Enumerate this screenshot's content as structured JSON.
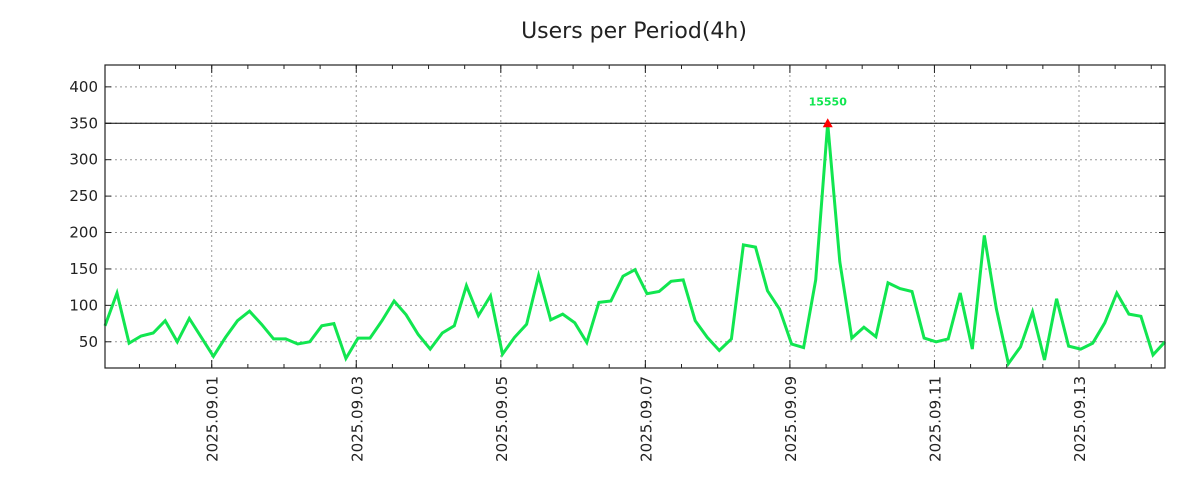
{
  "chart_data": {
    "type": "line",
    "title": "Users per Period(4h)",
    "xlabel": "",
    "ylabel": "",
    "x_unit": "period index (4h each)",
    "ylim": [
      14,
      430
    ],
    "xlim": [
      0,
      88
    ],
    "grid": true,
    "yticks": [
      50,
      100,
      150,
      200,
      250,
      300,
      350,
      400
    ],
    "xticks": [
      {
        "pos": 8.86,
        "label": "2025.09.01"
      },
      {
        "pos": 20.86,
        "label": "2025.09.03"
      },
      {
        "pos": 32.86,
        "label": "2025.09.05"
      },
      {
        "pos": 44.86,
        "label": "2025.09.07"
      },
      {
        "pos": 56.86,
        "label": "2025.09.09"
      },
      {
        "pos": 68.86,
        "label": "2025.09.11"
      },
      {
        "pos": 80.86,
        "label": "2025.09.13"
      }
    ],
    "reference_line": 350,
    "peak": {
      "index": 60,
      "value": 350,
      "label": "15550"
    },
    "series": [
      {
        "name": "users",
        "color": "#11e650",
        "values": [
          72,
          117,
          48,
          58,
          62,
          79,
          50,
          82,
          56,
          30,
          56,
          79,
          92,
          74,
          54,
          54,
          47,
          50,
          72,
          75,
          27,
          55,
          55,
          79,
          106,
          87,
          60,
          40,
          62,
          72,
          127,
          86,
          113,
          33,
          56,
          74,
          141,
          80,
          88,
          76,
          49,
          104,
          106,
          140,
          149,
          116,
          119,
          133,
          135,
          79,
          56,
          38,
          54,
          183,
          180,
          120,
          95,
          47,
          42,
          135,
          350,
          160,
          55,
          70,
          57,
          131,
          123,
          119,
          55,
          50,
          54,
          117,
          40,
          196,
          95,
          20,
          43,
          91,
          25,
          109,
          44,
          40,
          48,
          76,
          117,
          88,
          85,
          32,
          50
        ]
      }
    ],
    "colors": {
      "marker": "#ff0000",
      "peak_label": "#11e650",
      "ref_line": "#000000",
      "grid": "#999999"
    }
  }
}
